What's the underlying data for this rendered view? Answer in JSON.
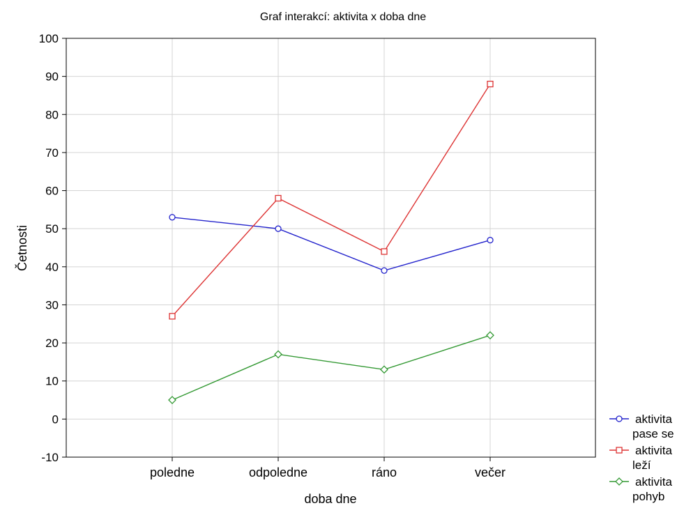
{
  "chart_data": {
    "type": "line",
    "title": "Graf interakcí: aktivita x doba dne",
    "xlabel": "doba dne",
    "ylabel": "Četnosti",
    "categories": [
      "poledne",
      "odpoledne",
      "ráno",
      "večer"
    ],
    "ylim": [
      -10,
      100
    ],
    "yticks": [
      "-10",
      "0",
      "10",
      "20",
      "30",
      "40",
      "50",
      "60",
      "70",
      "80",
      "90",
      "100"
    ],
    "grid": true,
    "legend_position": "bottom-right",
    "series": [
      {
        "name_line1": "aktivita",
        "name_line2": "pase se",
        "values": [
          53,
          50,
          39,
          47
        ],
        "color": "#2222cc",
        "marker": "circle"
      },
      {
        "name_line1": "aktivita",
        "name_line2": "leží",
        "values": [
          27,
          58,
          44,
          88
        ],
        "color": "#dd3333",
        "marker": "square"
      },
      {
        "name_line1": "aktivita",
        "name_line2": "pohyb",
        "values": [
          5,
          17,
          13,
          22
        ],
        "color": "#339933",
        "marker": "diamond"
      }
    ]
  }
}
